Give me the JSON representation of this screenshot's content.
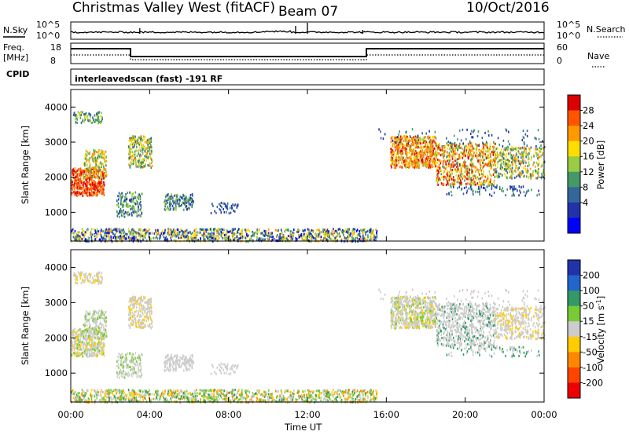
{
  "header": {
    "title": "Christmas Valley West (fitACF)",
    "beam": "Beam 07",
    "date": "10/Oct/2016"
  },
  "status_panels": {
    "nsky_label": "N.Sky",
    "nsearch_label": "N.Search",
    "noise_left_ticks": [
      "10^5",
      "10^0"
    ],
    "noise_right_ticks": [
      "10^5",
      "10^0"
    ],
    "freq_label_1": "Freq.",
    "freq_label_2": "[MHz]",
    "freq_ticks": [
      "18",
      "8"
    ],
    "nave_label": "Nave",
    "nave_ticks": [
      "60",
      "0"
    ],
    "cpid_label": "CPID",
    "cpid_text": "interleavedscan (fast) -191 RF"
  },
  "chart_data": [
    {
      "type": "heatmap",
      "panel": "power",
      "ylabel": "Slant Range [km]",
      "y_ticks": [
        "4000",
        "3000",
        "2000",
        "1000"
      ],
      "y_values": [
        4000,
        3000,
        2000,
        1000
      ],
      "ylim": [
        180,
        4500
      ],
      "x_ticks": [
        "00:00",
        "04:00",
        "08:00",
        "12:00",
        "16:00",
        "20:00",
        "00:00"
      ],
      "x_hours": [
        0,
        4,
        8,
        12,
        16,
        20,
        24
      ],
      "colorbar_label": "Power [dB]",
      "colorbar_ticks": [
        "28",
        "24",
        "20",
        "16",
        "12",
        "8",
        "4"
      ],
      "colorbar_values": [
        28,
        24,
        20,
        16,
        12,
        8,
        4
      ],
      "colorbar_colors": [
        "#dd0000",
        "#ff5500",
        "#ff9900",
        "#ffdd00",
        "#99cc44",
        "#449966",
        "#336699",
        "#2233aa",
        "#0000ff"
      ]
    },
    {
      "type": "heatmap",
      "panel": "velocity",
      "ylabel": "Slant Range [km]",
      "y_ticks": [
        "4000",
        "3000",
        "2000",
        "1000"
      ],
      "y_values": [
        4000,
        3000,
        2000,
        1000
      ],
      "ylim": [
        180,
        4500
      ],
      "x_ticks": [
        "00:00",
        "04:00",
        "08:00",
        "12:00",
        "16:00",
        "20:00",
        "00:00"
      ],
      "x_hours": [
        0,
        4,
        8,
        12,
        16,
        20,
        24
      ],
      "xlabel": "Time UT",
      "colorbar_label": "Velocity [m s",
      "colorbar_label_sup": "-1",
      "colorbar_label_end": "]",
      "colorbar_ticks": [
        "200",
        "100",
        "50",
        "15",
        "-15",
        "-50",
        "-100",
        "-200"
      ],
      "colorbar_values": [
        200,
        100,
        50,
        15,
        -15,
        -50,
        -100,
        -200
      ],
      "colorbar_colors": [
        "#2233aa",
        "#2266cc",
        "#339966",
        "#77cc33",
        "#cccccc",
        "#ffcc00",
        "#ff8800",
        "#ff4400",
        "#ee0000"
      ]
    }
  ]
}
